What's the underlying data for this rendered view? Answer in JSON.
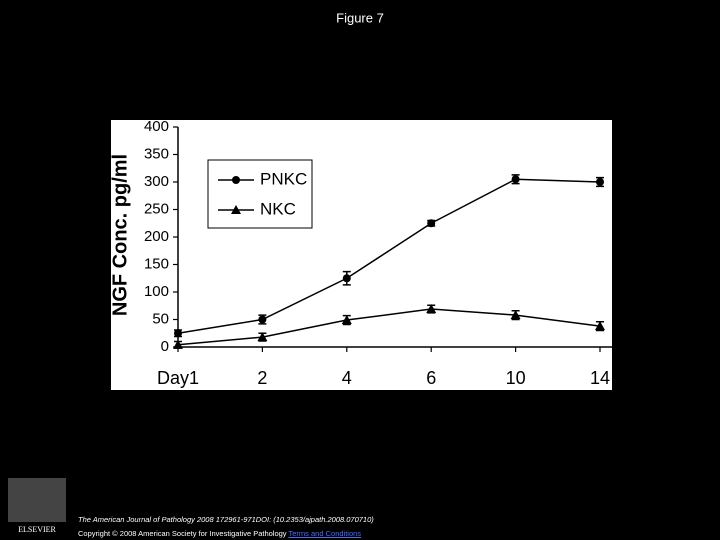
{
  "slide_title": "Figure 7",
  "chart_data": {
    "type": "line",
    "ylabel": "NGF Conc. pg/ml",
    "categories": [
      "Day1",
      "2",
      "4",
      "6",
      "10",
      "14"
    ],
    "series": [
      {
        "name": "PNKC",
        "color": "#000000",
        "marker": "circle",
        "values": [
          25,
          50,
          125,
          225,
          305,
          300
        ],
        "errors": [
          6,
          8,
          12,
          5,
          8,
          8
        ]
      },
      {
        "name": "NKC",
        "color": "#000000",
        "marker": "triangle",
        "values": [
          4,
          18,
          49,
          69,
          58,
          38
        ],
        "errors": [
          6,
          7,
          8,
          7,
          8,
          8
        ]
      }
    ],
    "ylim": [
      0,
      400
    ],
    "yticks": [
      0,
      50,
      100,
      150,
      200,
      250,
      300,
      350,
      400
    ],
    "legend": "upper left"
  },
  "logo": "ELSEVIER",
  "footer": {
    "citation": "The American Journal of Pathology 2008 172961-971DOI: (10.2353/ajpath.2008.070710)",
    "copyright": "Copyright © 2008 American Society for Investigative Pathology",
    "link": "Terms and Conditions"
  }
}
